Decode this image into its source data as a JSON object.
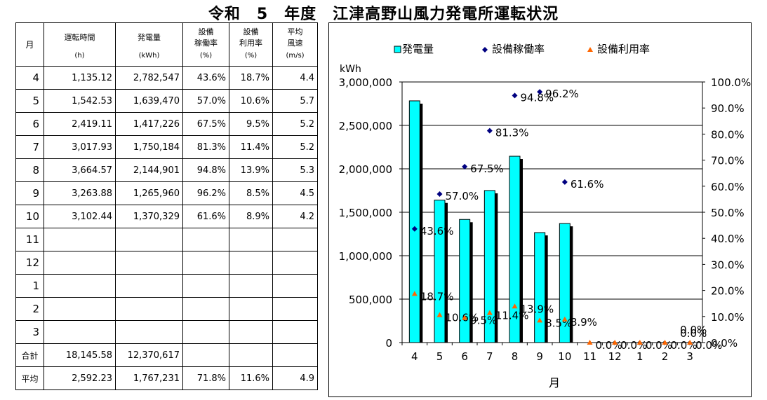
{
  "title": "令和　5　年度　江津高野山風力発電所運転状況",
  "table": {
    "headers": [
      {
        "label": "月",
        "unit": ""
      },
      {
        "label": "運転時間",
        "unit": "(h)"
      },
      {
        "label": "発電量",
        "unit": "(kWh)"
      },
      {
        "label": "設備\n稼働率",
        "unit": "(%)"
      },
      {
        "label": "設備\n利用率",
        "unit": "(%)"
      },
      {
        "label": "平均\n風速",
        "unit": "(m/s)"
      }
    ],
    "rows": [
      {
        "month": "4",
        "hours": "1,135.12",
        "kwh": "2,782,547",
        "op": "43.6%",
        "util": "18.7%",
        "wind": "4.4"
      },
      {
        "month": "5",
        "hours": "1,542.53",
        "kwh": "1,639,470",
        "op": "57.0%",
        "util": "10.6%",
        "wind": "5.7"
      },
      {
        "month": "6",
        "hours": "2,419.11",
        "kwh": "1,417,226",
        "op": "67.5%",
        "util": "9.5%",
        "wind": "5.2"
      },
      {
        "month": "7",
        "hours": "3,017.93",
        "kwh": "1,750,184",
        "op": "81.3%",
        "util": "11.4%",
        "wind": "5.2"
      },
      {
        "month": "8",
        "hours": "3,664.57",
        "kwh": "2,144,901",
        "op": "94.8%",
        "util": "13.9%",
        "wind": "5.3"
      },
      {
        "month": "9",
        "hours": "3,263.88",
        "kwh": "1,265,960",
        "op": "96.2%",
        "util": "8.5%",
        "wind": "4.5"
      },
      {
        "month": "10",
        "hours": "3,102.44",
        "kwh": "1,370,329",
        "op": "61.6%",
        "util": "8.9%",
        "wind": "4.2"
      },
      {
        "month": "11",
        "hours": "",
        "kwh": "",
        "op": "",
        "util": "",
        "wind": ""
      },
      {
        "month": "12",
        "hours": "",
        "kwh": "",
        "op": "",
        "util": "",
        "wind": ""
      },
      {
        "month": "1",
        "hours": "",
        "kwh": "",
        "op": "",
        "util": "",
        "wind": ""
      },
      {
        "month": "2",
        "hours": "",
        "kwh": "",
        "op": "",
        "util": "",
        "wind": ""
      },
      {
        "month": "3",
        "hours": "",
        "kwh": "",
        "op": "",
        "util": "",
        "wind": ""
      }
    ],
    "total": {
      "label": "合計",
      "hours": "18,145.58",
      "kwh": "12,370,617",
      "op": "",
      "util": "",
      "wind": ""
    },
    "average": {
      "label": "平均",
      "hours": "2,592.23",
      "kwh": "1,767,231",
      "op": "71.8%",
      "util": "11.6%",
      "wind": "4.9"
    }
  },
  "chart_data": {
    "type": "bar",
    "categories": [
      "4",
      "5",
      "6",
      "7",
      "8",
      "9",
      "10",
      "11",
      "12",
      "1",
      "2",
      "3"
    ],
    "xlabel": "月",
    "ylabel": "kWh",
    "ylim": [
      0,
      3000000
    ],
    "y_ticks": [
      "0",
      "500,000",
      "1,000,000",
      "1,500,000",
      "2,000,000",
      "2,500,000",
      "3,000,000"
    ],
    "y2lim": [
      0,
      100
    ],
    "y2_ticks": [
      "0.0%",
      "10.0%",
      "20.0%",
      "30.0%",
      "40.0%",
      "50.0%",
      "60.0%",
      "70.0%",
      "80.0%",
      "90.0%",
      "100.0%"
    ],
    "legend_position": "top",
    "series": [
      {
        "name": "発電量",
        "kind": "bar",
        "axis": "left",
        "color": "#00FFFF",
        "values": [
          2782547,
          1639470,
          1417226,
          1750184,
          2144901,
          1265960,
          1370329,
          null,
          null,
          null,
          null,
          null
        ]
      },
      {
        "name": "設備稼働率",
        "kind": "marker",
        "marker": "diamond",
        "axis": "right",
        "color": "#000080",
        "values": [
          43.6,
          57.0,
          67.5,
          81.3,
          94.8,
          96.2,
          61.6,
          null,
          null,
          null,
          null,
          null
        ],
        "labels": [
          "43.6%",
          "57.0%",
          "67.5%",
          "81.3%",
          "94.8%",
          "96.2%",
          "61.6%",
          "",
          "",
          "",
          "",
          ""
        ]
      },
      {
        "name": "設備利用率",
        "kind": "marker",
        "marker": "triangle",
        "axis": "right",
        "color": "#FF6600",
        "values": [
          18.7,
          10.6,
          9.5,
          11.4,
          13.9,
          8.5,
          8.9,
          0,
          0,
          0,
          0,
          0
        ],
        "labels": [
          "18.7%",
          "10.6%",
          "9.5%",
          "11.4%",
          "13.9%",
          "8.5%",
          "8.9%",
          "0.0%",
          "0.0%",
          "0.0%",
          "0.0%",
          "0.0%"
        ]
      }
    ],
    "extra_labels": [
      "0.0%",
      "0.0%"
    ]
  }
}
